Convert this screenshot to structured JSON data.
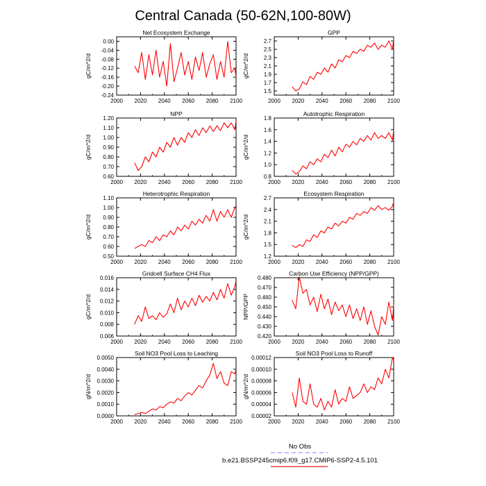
{
  "page_title": "Central Canada (50-62N,100-80W)",
  "legend": {
    "entries": [
      {
        "label": "No Obs",
        "color": "#9999ff",
        "dash": true
      },
      {
        "label": "b.e21.BSSP245cmip6.f09_g17.CMIP6-SSP2-4.5.101",
        "color": "#e41a1c",
        "dash": false
      }
    ]
  },
  "colors": {
    "series": "#ff0000",
    "obs": "#9999ff",
    "axis": "#000000"
  },
  "chart_data": [
    {
      "type": "line",
      "title": "Net Ecosystem Exchange",
      "xlabel": "",
      "ylabel": "gC/m^2/d",
      "xlim": [
        2000,
        2100
      ],
      "ylim": [
        -0.24,
        0.02
      ],
      "xticks": [
        2000,
        2020,
        2040,
        2060,
        2080,
        2100
      ],
      "xtick_labels": [
        "2000",
        "2020",
        "2040",
        "2060",
        "2080",
        "2100"
      ],
      "yticks": [
        -0.24,
        -0.2,
        -0.16,
        -0.12,
        -0.08,
        -0.04,
        0.0
      ],
      "ytick_labels": [
        "-0.24",
        "-0.20",
        "-0.16",
        "-0.12",
        "-0.08",
        "-0.04",
        "0.00"
      ],
      "series": [
        {
          "x": [
            2015,
            2018,
            2021,
            2024,
            2027,
            2030,
            2033,
            2036,
            2039,
            2042,
            2045,
            2048,
            2051,
            2054,
            2057,
            2060,
            2063,
            2066,
            2069,
            2072,
            2075,
            2078,
            2081,
            2084,
            2087,
            2090,
            2093,
            2096,
            2099,
            2100
          ],
          "y": [
            -0.11,
            -0.14,
            -0.05,
            -0.17,
            -0.06,
            -0.15,
            -0.04,
            -0.16,
            -0.09,
            -0.2,
            -0.01,
            -0.18,
            -0.12,
            -0.05,
            -0.15,
            -0.09,
            -0.17,
            -0.07,
            -0.13,
            -0.05,
            -0.16,
            -0.1,
            -0.06,
            -0.17,
            -0.09,
            -0.16,
            0.0,
            -0.14,
            -0.12,
            -0.16
          ]
        }
      ]
    },
    {
      "type": "line",
      "title": "GPP",
      "xlabel": "",
      "ylabel": "gC/m^2/d",
      "xlim": [
        2000,
        2100
      ],
      "ylim": [
        1.4,
        2.8
      ],
      "xticks": [
        2000,
        2020,
        2040,
        2060,
        2080,
        2100
      ],
      "xtick_labels": [
        "2000",
        "2020",
        "2040",
        "2060",
        "2080",
        "2100"
      ],
      "yticks": [
        1.5,
        1.7,
        1.9,
        2.1,
        2.3,
        2.5,
        2.7
      ],
      "ytick_labels": [
        "1.5",
        "1.7",
        "1.9",
        "2.1",
        "2.3",
        "2.5",
        "2.7"
      ],
      "series": [
        {
          "x": [
            2015,
            2018,
            2021,
            2024,
            2027,
            2030,
            2033,
            2036,
            2039,
            2042,
            2045,
            2048,
            2051,
            2054,
            2057,
            2060,
            2063,
            2066,
            2069,
            2072,
            2075,
            2078,
            2081,
            2084,
            2087,
            2090,
            2093,
            2096,
            2099,
            2100
          ],
          "y": [
            1.6,
            1.5,
            1.55,
            1.72,
            1.65,
            1.85,
            1.78,
            1.95,
            1.9,
            2.05,
            1.95,
            2.15,
            2.05,
            2.25,
            2.2,
            2.35,
            2.3,
            2.45,
            2.4,
            2.5,
            2.45,
            2.6,
            2.55,
            2.65,
            2.5,
            2.6,
            2.55,
            2.7,
            2.5,
            2.75
          ]
        }
      ]
    },
    {
      "type": "line",
      "title": "NPP",
      "xlabel": "",
      "ylabel": "gC/m^2/d",
      "xlim": [
        2000,
        2100
      ],
      "ylim": [
        0.6,
        1.2
      ],
      "xticks": [
        2000,
        2020,
        2040,
        2060,
        2080,
        2100
      ],
      "xtick_labels": [
        "2000",
        "2020",
        "2040",
        "2060",
        "2080",
        "2100"
      ],
      "yticks": [
        0.6,
        0.7,
        0.8,
        0.9,
        1.0,
        1.1,
        1.2
      ],
      "ytick_labels": [
        "0.60",
        "0.70",
        "0.80",
        "0.90",
        "1.00",
        "1.10",
        "1.20"
      ],
      "series": [
        {
          "x": [
            2015,
            2018,
            2021,
            2024,
            2027,
            2030,
            2033,
            2036,
            2039,
            2042,
            2045,
            2048,
            2051,
            2054,
            2057,
            2060,
            2063,
            2066,
            2069,
            2072,
            2075,
            2078,
            2081,
            2084,
            2087,
            2090,
            2093,
            2096,
            2099,
            2100
          ],
          "y": [
            0.74,
            0.66,
            0.7,
            0.8,
            0.75,
            0.85,
            0.8,
            0.9,
            0.85,
            0.95,
            0.9,
            1.0,
            0.92,
            1.0,
            0.95,
            1.05,
            1.0,
            1.08,
            1.02,
            1.1,
            1.05,
            1.12,
            1.06,
            1.12,
            1.07,
            1.15,
            1.1,
            1.15,
            1.08,
            1.17
          ]
        }
      ]
    },
    {
      "type": "line",
      "title": "Autotrophic Respiration",
      "xlabel": "",
      "ylabel": "gC/m^2/d",
      "xlim": [
        2000,
        2100
      ],
      "ylim": [
        0.8,
        1.8
      ],
      "xticks": [
        2000,
        2020,
        2040,
        2060,
        2080,
        2100
      ],
      "xtick_labels": [
        "2000",
        "2020",
        "2040",
        "2060",
        "2080",
        "2100"
      ],
      "yticks": [
        0.8,
        1.0,
        1.2,
        1.4,
        1.6,
        1.8
      ],
      "ytick_labels": [
        "0.8",
        "1.0",
        "1.2",
        "1.4",
        "1.6",
        "1.8"
      ],
      "series": [
        {
          "x": [
            2015,
            2018,
            2021,
            2024,
            2027,
            2030,
            2033,
            2036,
            2039,
            2042,
            2045,
            2048,
            2051,
            2054,
            2057,
            2060,
            2063,
            2066,
            2069,
            2072,
            2075,
            2078,
            2081,
            2084,
            2087,
            2090,
            2093,
            2096,
            2099,
            2100
          ],
          "y": [
            0.9,
            0.84,
            0.88,
            0.98,
            0.93,
            1.05,
            1.0,
            1.1,
            1.05,
            1.18,
            1.12,
            1.25,
            1.15,
            1.3,
            1.22,
            1.35,
            1.3,
            1.4,
            1.34,
            1.45,
            1.4,
            1.5,
            1.42,
            1.55,
            1.45,
            1.5,
            1.45,
            1.55,
            1.42,
            1.6
          ]
        }
      ]
    },
    {
      "type": "line",
      "title": "Heterotrophic Respiration",
      "xlabel": "",
      "ylabel": "gC/m^2/d",
      "xlim": [
        2000,
        2100
      ],
      "ylim": [
        0.5,
        1.1
      ],
      "xticks": [
        2000,
        2020,
        2040,
        2060,
        2080,
        2100
      ],
      "xtick_labels": [
        "2000",
        "2020",
        "2040",
        "2060",
        "2080",
        "2100"
      ],
      "yticks": [
        0.5,
        0.6,
        0.7,
        0.8,
        0.9,
        1.0,
        1.1
      ],
      "ytick_labels": [
        "0.50",
        "0.60",
        "0.70",
        "0.80",
        "0.90",
        "1.00",
        "1.10"
      ],
      "series": [
        {
          "x": [
            2015,
            2018,
            2021,
            2024,
            2027,
            2030,
            2033,
            2036,
            2039,
            2042,
            2045,
            2048,
            2051,
            2054,
            2057,
            2060,
            2063,
            2066,
            2069,
            2072,
            2075,
            2078,
            2081,
            2084,
            2087,
            2090,
            2093,
            2096,
            2099,
            2100
          ],
          "y": [
            0.58,
            0.6,
            0.62,
            0.6,
            0.66,
            0.64,
            0.7,
            0.66,
            0.72,
            0.7,
            0.76,
            0.72,
            0.8,
            0.76,
            0.82,
            0.78,
            0.86,
            0.82,
            0.88,
            0.84,
            0.92,
            0.86,
            0.98,
            0.86,
            0.96,
            0.9,
            0.98,
            0.9,
            1.0,
            1.02
          ]
        }
      ]
    },
    {
      "type": "line",
      "title": "Ecosystem Respiration",
      "xlabel": "",
      "ylabel": "gC/m^2/d",
      "xlim": [
        2000,
        2100
      ],
      "ylim": [
        1.2,
        2.7
      ],
      "xticks": [
        2000,
        2020,
        2040,
        2060,
        2080,
        2100
      ],
      "xtick_labels": [
        "2000",
        "2020",
        "2040",
        "2060",
        "2080",
        "2100"
      ],
      "yticks": [
        1.2,
        1.5,
        1.8,
        2.1,
        2.4,
        2.7
      ],
      "ytick_labels": [
        "1.2",
        "1.5",
        "1.8",
        "2.1",
        "2.4",
        "2.7"
      ],
      "series": [
        {
          "x": [
            2015,
            2018,
            2021,
            2024,
            2027,
            2030,
            2033,
            2036,
            2039,
            2042,
            2045,
            2048,
            2051,
            2054,
            2057,
            2060,
            2063,
            2066,
            2069,
            2072,
            2075,
            2078,
            2081,
            2084,
            2087,
            2090,
            2093,
            2096,
            2099,
            2100
          ],
          "y": [
            1.48,
            1.42,
            1.5,
            1.45,
            1.62,
            1.58,
            1.75,
            1.68,
            1.85,
            1.8,
            1.95,
            1.9,
            2.05,
            1.98,
            2.1,
            2.05,
            2.2,
            2.15,
            2.3,
            2.25,
            2.35,
            2.3,
            2.45,
            2.38,
            2.5,
            2.4,
            2.45,
            2.38,
            2.48,
            2.6
          ]
        }
      ]
    },
    {
      "type": "line",
      "title": "Gridcell Surface CH4 Flux",
      "xlabel": "",
      "ylabel": "gC/m^2/d",
      "xlim": [
        2000,
        2100
      ],
      "ylim": [
        0.006,
        0.016
      ],
      "xticks": [
        2000,
        2020,
        2040,
        2060,
        2080,
        2100
      ],
      "xtick_labels": [
        "2000",
        "2020",
        "2040",
        "2060",
        "2080",
        "2100"
      ],
      "yticks": [
        0.006,
        0.008,
        0.01,
        0.012,
        0.014,
        0.016
      ],
      "ytick_labels": [
        "0.006",
        "0.008",
        "0.010",
        "0.012",
        "0.014",
        "0.016"
      ],
      "series": [
        {
          "x": [
            2015,
            2018,
            2021,
            2024,
            2027,
            2030,
            2033,
            2036,
            2039,
            2042,
            2045,
            2048,
            2051,
            2054,
            2057,
            2060,
            2063,
            2066,
            2069,
            2072,
            2075,
            2078,
            2081,
            2084,
            2087,
            2090,
            2093,
            2096,
            2099,
            2100
          ],
          "y": [
            0.008,
            0.0095,
            0.0085,
            0.011,
            0.009,
            0.0095,
            0.0088,
            0.01,
            0.0092,
            0.0098,
            0.0115,
            0.01,
            0.0125,
            0.0105,
            0.012,
            0.011,
            0.0125,
            0.0112,
            0.013,
            0.0118,
            0.0128,
            0.012,
            0.0135,
            0.0122,
            0.014,
            0.0125,
            0.015,
            0.013,
            0.0145,
            0.0155
          ]
        }
      ]
    },
    {
      "type": "line",
      "title": "Carbon Use Efficiency (NPP/GPP)",
      "xlabel": "",
      "ylabel": "NPP/GPP",
      "xlim": [
        2000,
        2100
      ],
      "ylim": [
        0.42,
        0.48
      ],
      "xticks": [
        2000,
        2020,
        2040,
        2060,
        2080,
        2100
      ],
      "xtick_labels": [
        "2000",
        "2020",
        "2040",
        "2060",
        "2080",
        "2100"
      ],
      "yticks": [
        0.42,
        0.43,
        0.44,
        0.45,
        0.46,
        0.47,
        0.48
      ],
      "ytick_labels": [
        "0.420",
        "0.430",
        "0.440",
        "0.450",
        "0.460",
        "0.470",
        "0.480"
      ],
      "series": [
        {
          "x": [
            2015,
            2018,
            2021,
            2024,
            2027,
            2030,
            2033,
            2036,
            2039,
            2042,
            2045,
            2048,
            2051,
            2054,
            2057,
            2060,
            2063,
            2066,
            2069,
            2072,
            2075,
            2078,
            2081,
            2084,
            2087,
            2090,
            2093,
            2096,
            2099,
            2100
          ],
          "y": [
            0.457,
            0.448,
            0.481,
            0.464,
            0.468,
            0.452,
            0.46,
            0.445,
            0.463,
            0.448,
            0.458,
            0.442,
            0.455,
            0.446,
            0.452,
            0.44,
            0.452,
            0.438,
            0.448,
            0.436,
            0.45,
            0.432,
            0.446,
            0.43,
            0.421,
            0.44,
            0.432,
            0.455,
            0.436,
            0.452
          ]
        }
      ]
    },
    {
      "type": "line",
      "title": "Soil NO3 Pool Loss to Leaching",
      "xlabel": "",
      "ylabel": "gN/m^2/d",
      "xlim": [
        2000,
        2100
      ],
      "ylim": [
        0.0,
        0.005
      ],
      "xticks": [
        2000,
        2020,
        2040,
        2060,
        2080,
        2100
      ],
      "xtick_labels": [
        "2000",
        "2020",
        "2040",
        "2060",
        "2080",
        "2100"
      ],
      "yticks": [
        0.0,
        0.001,
        0.002,
        0.003,
        0.004,
        0.005
      ],
      "ytick_labels": [
        "0.0000",
        "0.0010",
        "0.0020",
        "0.0030",
        "0.0040",
        "0.0050"
      ],
      "series": [
        {
          "x": [
            2015,
            2018,
            2021,
            2024,
            2027,
            2030,
            2033,
            2036,
            2039,
            2042,
            2045,
            2048,
            2051,
            2054,
            2057,
            2060,
            2063,
            2066,
            2069,
            2072,
            2075,
            2078,
            2081,
            2084,
            2087,
            2090,
            2093,
            2096,
            2099,
            2100
          ],
          "y": [
            0.0001,
            0.0002,
            0.0003,
            0.0002,
            0.0004,
            0.0006,
            0.0005,
            0.0008,
            0.0007,
            0.001,
            0.0012,
            0.0011,
            0.0015,
            0.0013,
            0.0017,
            0.002,
            0.0018,
            0.0022,
            0.0026,
            0.0024,
            0.003,
            0.0035,
            0.0045,
            0.0032,
            0.0038,
            0.0028,
            0.0026,
            0.0038,
            0.0036,
            0.004
          ]
        }
      ]
    },
    {
      "type": "line",
      "title": "Soil NO3 Pool Loss to Runoff",
      "xlabel": "",
      "ylabel": "gN/m^2/d",
      "xlim": [
        2000,
        2100
      ],
      "ylim": [
        2e-05,
        0.00012
      ],
      "xticks": [
        2000,
        2020,
        2040,
        2060,
        2080,
        2100
      ],
      "xtick_labels": [
        "2000",
        "2020",
        "2040",
        "2060",
        "2080",
        "2100"
      ],
      "yticks": [
        2e-05,
        4e-05,
        6e-05,
        8e-05,
        0.0001,
        0.00012
      ],
      "ytick_labels": [
        "0.00002",
        "0.00004",
        "0.00006",
        "0.00008",
        "0.00010",
        "0.00012"
      ],
      "series": [
        {
          "x": [
            2015,
            2018,
            2021,
            2024,
            2027,
            2030,
            2033,
            2036,
            2039,
            2042,
            2045,
            2048,
            2051,
            2054,
            2057,
            2060,
            2063,
            2066,
            2069,
            2072,
            2075,
            2078,
            2081,
            2084,
            2087,
            2090,
            2093,
            2096,
            2099,
            2100
          ],
          "y": [
            6e-05,
            3.5e-05,
            8.5e-05,
            4.5e-05,
            4e-05,
            7.5e-05,
            4e-05,
            3.5e-05,
            5e-05,
            3e-05,
            4.5e-05,
            3.5e-05,
            6.5e-05,
            4e-05,
            5e-05,
            4.5e-05,
            7e-05,
            5e-05,
            5.5e-05,
            6e-05,
            7.5e-05,
            6e-05,
            7e-05,
            6.5e-05,
            8.5e-05,
            7.5e-05,
            0.0001,
            8.5e-05,
            0.00012,
            0.000115
          ]
        }
      ]
    }
  ]
}
